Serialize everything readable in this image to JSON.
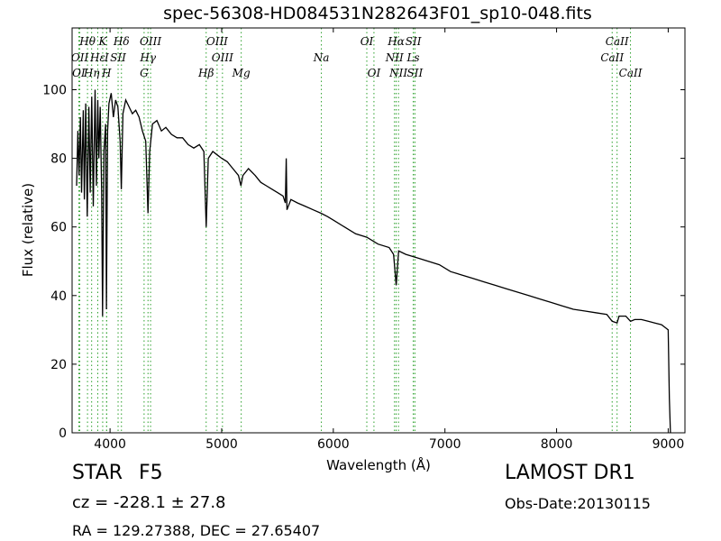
{
  "header": {
    "title": "spec-56308-HD084531N282643F01_sp10-048.fits"
  },
  "info": {
    "object_class": "STAR",
    "subclass": "F5",
    "survey": "LAMOST DR1",
    "cz": "cz = -228.1 ± 27.8",
    "obs_date": "Obs-Date:20130115",
    "radec": "RA = 129.27388, DEC = 27.65407"
  },
  "chart_data": {
    "type": "line",
    "xlabel": "Wavelength (Å)",
    "ylabel": "Flux (relative)",
    "xlim": [
      3660,
      9150
    ],
    "ylim": [
      0,
      118
    ],
    "xticks": [
      4000,
      5000,
      6000,
      7000,
      8000,
      9000
    ],
    "yticks": [
      0,
      20,
      40,
      60,
      80,
      100
    ],
    "line_color": "#000000",
    "marker_color": "#2ca02c",
    "series": [
      {
        "points": [
          [
            3700,
            72
          ],
          [
            3712,
            88
          ],
          [
            3722,
            75
          ],
          [
            3734,
            92
          ],
          [
            3745,
            70
          ],
          [
            3760,
            94
          ],
          [
            3770,
            68
          ],
          [
            3782,
            96
          ],
          [
            3796,
            63
          ],
          [
            3810,
            95
          ],
          [
            3822,
            70
          ],
          [
            3836,
            98
          ],
          [
            3850,
            66
          ],
          [
            3866,
            100
          ],
          [
            3878,
            72
          ],
          [
            3890,
            97
          ],
          [
            3900,
            80
          ],
          [
            3912,
            95
          ],
          [
            3925,
            70
          ],
          [
            3933,
            34
          ],
          [
            3945,
            82
          ],
          [
            3960,
            90
          ],
          [
            3968,
            36
          ],
          [
            3978,
            88
          ],
          [
            3990,
            96
          ],
          [
            4010,
            99
          ],
          [
            4030,
            92
          ],
          [
            4050,
            97
          ],
          [
            4070,
            95
          ],
          [
            4090,
            85
          ],
          [
            4101,
            71
          ],
          [
            4115,
            93
          ],
          [
            4140,
            97
          ],
          [
            4170,
            95
          ],
          [
            4200,
            93
          ],
          [
            4230,
            94
          ],
          [
            4260,
            92
          ],
          [
            4290,
            88
          ],
          [
            4320,
            85
          ],
          [
            4340,
            64
          ],
          [
            4355,
            82
          ],
          [
            4380,
            90
          ],
          [
            4420,
            91
          ],
          [
            4460,
            88
          ],
          [
            4500,
            89
          ],
          [
            4550,
            87
          ],
          [
            4600,
            86
          ],
          [
            4650,
            86
          ],
          [
            4700,
            84
          ],
          [
            4750,
            83
          ],
          [
            4800,
            84
          ],
          [
            4840,
            82
          ],
          [
            4861,
            60
          ],
          [
            4880,
            80
          ],
          [
            4920,
            82
          ],
          [
            4960,
            81
          ],
          [
            5000,
            80
          ],
          [
            5050,
            79
          ],
          [
            5100,
            77
          ],
          [
            5150,
            75
          ],
          [
            5172,
            72
          ],
          [
            5190,
            75
          ],
          [
            5240,
            77
          ],
          [
            5300,
            75
          ],
          [
            5350,
            73
          ],
          [
            5400,
            72
          ],
          [
            5450,
            71
          ],
          [
            5500,
            70
          ],
          [
            5550,
            69
          ],
          [
            5570,
            67
          ],
          [
            5578,
            80
          ],
          [
            5585,
            65
          ],
          [
            5620,
            68
          ],
          [
            5680,
            67
          ],
          [
            5750,
            66
          ],
          [
            5820,
            65
          ],
          [
            5890,
            64
          ],
          [
            5950,
            63
          ],
          [
            6000,
            62
          ],
          [
            6100,
            60
          ],
          [
            6200,
            58
          ],
          [
            6300,
            57
          ],
          [
            6400,
            55
          ],
          [
            6500,
            54
          ],
          [
            6540,
            52
          ],
          [
            6563,
            43
          ],
          [
            6585,
            53
          ],
          [
            6650,
            52
          ],
          [
            6750,
            51
          ],
          [
            6850,
            50
          ],
          [
            6950,
            49
          ],
          [
            7050,
            47
          ],
          [
            7150,
            46
          ],
          [
            7250,
            45
          ],
          [
            7350,
            44
          ],
          [
            7450,
            43
          ],
          [
            7550,
            42
          ],
          [
            7650,
            41
          ],
          [
            7750,
            40
          ],
          [
            7850,
            39
          ],
          [
            7950,
            38
          ],
          [
            8050,
            37
          ],
          [
            8150,
            36
          ],
          [
            8250,
            35.5
          ],
          [
            8350,
            35
          ],
          [
            8450,
            34.5
          ],
          [
            8498,
            32.5
          ],
          [
            8542,
            32
          ],
          [
            8560,
            34
          ],
          [
            8620,
            34
          ],
          [
            8662,
            32.5
          ],
          [
            8700,
            33
          ],
          [
            8760,
            33
          ],
          [
            8820,
            32.5
          ],
          [
            8880,
            32
          ],
          [
            8940,
            31.5
          ],
          [
            8980,
            30.5
          ],
          [
            9000,
            30
          ],
          [
            9010,
            10
          ],
          [
            9020,
            0
          ]
        ]
      }
    ],
    "line_markers": [
      {
        "label": "Hθ",
        "wavelength": 3798,
        "row": 0
      },
      {
        "label": "K",
        "wavelength": 3934,
        "row": 0
      },
      {
        "label": "Hδ",
        "wavelength": 4102,
        "row": 0
      },
      {
        "label": "OIII",
        "wavelength": 4363,
        "row": 0
      },
      {
        "label": "OIII",
        "wavelength": 4959,
        "row": 0
      },
      {
        "label": "OI",
        "wavelength": 6300,
        "row": 0
      },
      {
        "label": "Hα",
        "wavelength": 6563,
        "row": 0
      },
      {
        "label": "SII",
        "wavelength": 6717,
        "row": 0
      },
      {
        "label": "CaII",
        "wavelength": 8542,
        "row": 0
      },
      {
        "label": "OII",
        "wavelength": 3729,
        "row": 1
      },
      {
        "label": "Hε",
        "wavelength": 3890,
        "row": 1
      },
      {
        "label": "I",
        "wavelength": 3970,
        "row": 1
      },
      {
        "label": "SII",
        "wavelength": 4072,
        "row": 1
      },
      {
        "label": "Hγ",
        "wavelength": 4340,
        "row": 1
      },
      {
        "label": "OIII",
        "wavelength": 5007,
        "row": 1
      },
      {
        "label": "Na",
        "wavelength": 5893,
        "row": 1
      },
      {
        "label": "NII",
        "wavelength": 6548,
        "row": 1
      },
      {
        "label": "Ls",
        "wavelength": 6716,
        "row": 1
      },
      {
        "label": "CaII",
        "wavelength": 8498,
        "row": 1
      },
      {
        "label": "OI",
        "wavelength": 3720,
        "row": 2
      },
      {
        "label": "Hη",
        "wavelength": 3835,
        "row": 2
      },
      {
        "label": "H",
        "wavelength": 3969,
        "row": 2
      },
      {
        "label": "G",
        "wavelength": 4305,
        "row": 2
      },
      {
        "label": "Hβ",
        "wavelength": 4861,
        "row": 2
      },
      {
        "label": "Mg",
        "wavelength": 5175,
        "row": 2
      },
      {
        "label": "OI",
        "wavelength": 6364,
        "row": 2
      },
      {
        "label": "NII",
        "wavelength": 6584,
        "row": 2
      },
      {
        "label": "SII",
        "wavelength": 6731,
        "row": 2
      },
      {
        "label": "CaII",
        "wavelength": 8662,
        "row": 2
      }
    ]
  }
}
